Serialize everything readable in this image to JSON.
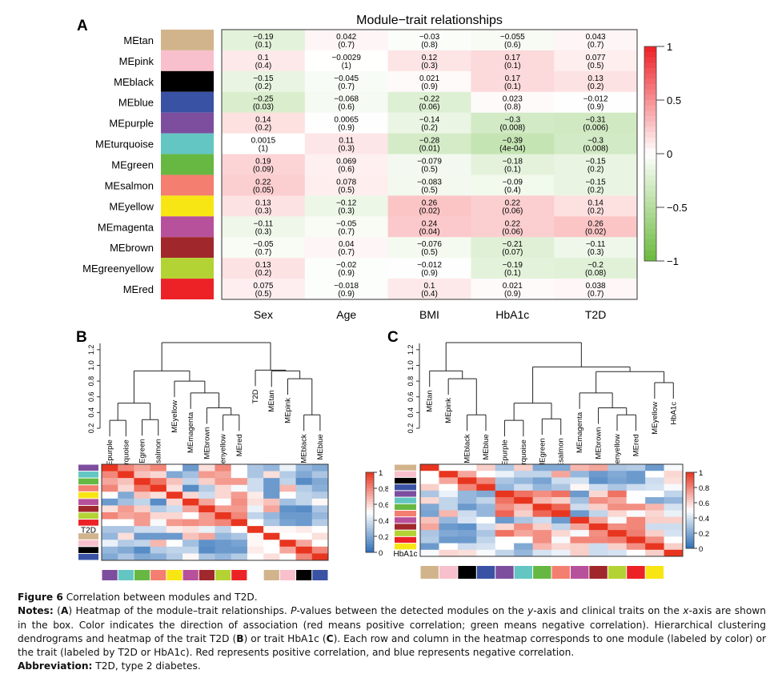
{
  "figure": {
    "caption_label": "Figure 6",
    "caption_title": " Correlation between modules and T2D.",
    "notes_label": "Notes:",
    "notes_segments": [
      {
        "t": " ("
      },
      {
        "t": "A",
        "b": true
      },
      {
        "t": ") Heatmap of the module–trait relationships. "
      },
      {
        "t": "P",
        "i": true
      },
      {
        "t": "-values between the detected modules on the "
      },
      {
        "t": "y",
        "i": true
      },
      {
        "t": "-axis and clinical traits on the "
      },
      {
        "t": "x",
        "i": true
      },
      {
        "t": "-axis are shown in the box. Color indicates the direction of association (red means positive correlation; green means negative correlation). Hierarchical clustering dendrograms and heatmap of the trait T2D ("
      },
      {
        "t": "B",
        "b": true
      },
      {
        "t": ") or trait HbA1c ("
      },
      {
        "t": "C",
        "b": true
      },
      {
        "t": "). Each row and column in the heatmap corresponds to one module (labeled by color) or the trait (labeled by T2D or HbA1c). Red represents positive correlation, and blue represents negative correlation."
      }
    ],
    "abbrev_label": "Abbreviation:",
    "abbrev_text": " T2D, type 2 diabetes."
  },
  "module_colors": {
    "MEtan": "#d2b48c",
    "MEpink": "#f8c0cc",
    "MEblack": "#000000",
    "MEblue": "#3a52a4",
    "MEpurple": "#7d4e9e",
    "MEturquoise": "#63c6c3",
    "MEgreen": "#67b843",
    "MEsalmon": "#f47e6f",
    "MEyellow": "#f7e614",
    "MEmagenta": "#b7519c",
    "MEbrown": "#a0282c",
    "MEgreenyellow": "#b3d334",
    "MEred": "#ec2227"
  },
  "chart_data": [
    {
      "type": "heatmap",
      "panel": "A",
      "title": "Module−trait relationships",
      "rows": [
        "MEtan",
        "MEpink",
        "MEblack",
        "MEblue",
        "MEpurple",
        "MEturquoise",
        "MEgreen",
        "MEsalmon",
        "MEyellow",
        "MEmagenta",
        "MEbrown",
        "MEgreenyellow",
        "MEred"
      ],
      "columns": [
        "Sex",
        "Age",
        "BMI",
        "HbA1c",
        "T2D"
      ],
      "values": [
        [
          -0.19,
          0.042,
          -0.03,
          -0.055,
          0.043
        ],
        [
          0.1,
          -0.0029,
          0.12,
          0.17,
          0.077
        ],
        [
          -0.15,
          -0.045,
          0.021,
          0.17,
          0.13
        ],
        [
          -0.25,
          -0.068,
          -0.22,
          0.023,
          -0.012
        ],
        [
          0.14,
          0.0065,
          -0.14,
          -0.3,
          -0.31
        ],
        [
          0.0015,
          0.11,
          -0.28,
          -0.39,
          -0.3
        ],
        [
          0.19,
          0.069,
          -0.079,
          -0.18,
          -0.15
        ],
        [
          0.22,
          0.078,
          -0.083,
          -0.09,
          -0.15
        ],
        [
          0.13,
          -0.12,
          0.26,
          0.22,
          0.14
        ],
        [
          -0.11,
          -0.05,
          0.24,
          0.22,
          0.26
        ],
        [
          -0.05,
          0.04,
          -0.076,
          -0.21,
          -0.11
        ],
        [
          0.13,
          -0.02,
          -0.012,
          -0.19,
          -0.2
        ],
        [
          0.075,
          -0.018,
          0.1,
          0.021,
          0.038
        ]
      ],
      "labels": [
        [
          [
            "-0.19",
            "(0.1)"
          ],
          [
            "0.042",
            "(0.7)"
          ],
          [
            "-0.03",
            "(0.8)"
          ],
          [
            "-0.055",
            "(0.6)"
          ],
          [
            "0.043",
            "(0.7)"
          ]
        ],
        [
          [
            "0.1",
            "(0.4)"
          ],
          [
            "-0.0029",
            "(1)"
          ],
          [
            "0.12",
            "(0.3)"
          ],
          [
            "0.17",
            "(0.1)"
          ],
          [
            "0.077",
            "(0.5)"
          ]
        ],
        [
          [
            "-0.15",
            "(0.2)"
          ],
          [
            "-0.045",
            "(0.7)"
          ],
          [
            "0.021",
            "(0.9)"
          ],
          [
            "0.17",
            "(0.1)"
          ],
          [
            "0.13",
            "(0.2)"
          ]
        ],
        [
          [
            "-0.25",
            "(0.03)"
          ],
          [
            "-0.068",
            "(0.6)"
          ],
          [
            "-0.22",
            "(0.06)"
          ],
          [
            "0.023",
            "(0.8)"
          ],
          [
            "-0.012",
            "(0.9)"
          ]
        ],
        [
          [
            "0.14",
            "(0.2)"
          ],
          [
            "0.0065",
            "(0.9)"
          ],
          [
            "-0.14",
            "(0.2)"
          ],
          [
            "-0.3",
            "(0.008)"
          ],
          [
            "-0.31",
            "(0.006)"
          ]
        ],
        [
          [
            "0.0015",
            "(1)"
          ],
          [
            "0.11",
            "(0.3)"
          ],
          [
            "-0.28",
            "(0.01)"
          ],
          [
            "-0.39",
            "(4e-04)"
          ],
          [
            "-0.3",
            "(0.008)"
          ]
        ],
        [
          [
            "0.19",
            "(0.09)"
          ],
          [
            "0.069",
            "(0.6)"
          ],
          [
            "-0.079",
            "(0.5)"
          ],
          [
            "-0.18",
            "(0.1)"
          ],
          [
            "-0.15",
            "(0.2)"
          ]
        ],
        [
          [
            "0.22",
            "(0.05)"
          ],
          [
            "0.078",
            "(0.5)"
          ],
          [
            "-0.083",
            "(0.5)"
          ],
          [
            "-0.09",
            "(0.4)"
          ],
          [
            "-0.15",
            "(0.2)"
          ]
        ],
        [
          [
            "0.13",
            "(0.3)"
          ],
          [
            "-0.12",
            "(0.3)"
          ],
          [
            "0.26",
            "(0.02)"
          ],
          [
            "0.22",
            "(0.06)"
          ],
          [
            "0.14",
            "(0.2)"
          ]
        ],
        [
          [
            "-0.11",
            "(0.3)"
          ],
          [
            "-0.05",
            "(0.7)"
          ],
          [
            "0.24",
            "(0.04)"
          ],
          [
            "0.22",
            "(0.06)"
          ],
          [
            "0.26",
            "(0.02)"
          ]
        ],
        [
          [
            "-0.05",
            "(0.7)"
          ],
          [
            "0.04",
            "(0.7)"
          ],
          [
            "-0.076",
            "(0.5)"
          ],
          [
            "-0.21",
            "(0.07)"
          ],
          [
            "-0.11",
            "(0.3)"
          ]
        ],
        [
          [
            "0.13",
            "(0.2)"
          ],
          [
            "-0.02",
            "(0.9)"
          ],
          [
            "-0.012",
            "(0.9)"
          ],
          [
            "-0.19",
            "(0.1)"
          ],
          [
            "-0.2",
            "(0.08)"
          ]
        ],
        [
          [
            "0.075",
            "(0.5)"
          ],
          [
            "-0.018",
            "(0.9)"
          ],
          [
            "0.1",
            "(0.4)"
          ],
          [
            "0.021",
            "(0.9)"
          ],
          [
            "0.038",
            "(0.7)"
          ]
        ]
      ],
      "colorscale": {
        "low": "#6ab93c",
        "mid": "#ffffff",
        "high": "#ee1f25",
        "range": [
          -1,
          1
        ]
      },
      "legend_ticks": [
        "1",
        "0.5",
        "0",
        "−0.5",
        "−1"
      ],
      "legend_position": "right"
    },
    {
      "type": "heatmap",
      "panel": "B",
      "dendrogram_axis_ticks": [
        "0.2",
        "0.4",
        "0.6",
        "0.8",
        "1.0",
        "1.2"
      ],
      "dendrogram_ylim": [
        0.2,
        1.3
      ],
      "dendrogram_leaves": [
        "MEpurple",
        "MEturquoise",
        "MEgreen",
        "MEsalmon",
        "MEyellow",
        "MEmagenta",
        "MEbrown",
        "MEgreenyellow",
        "MEred",
        "T2D",
        "MEtan",
        "MEpink",
        "MEblack",
        "MEblue"
      ],
      "dendrogram_merges": [
        [
          0,
          1,
          0.3
        ],
        [
          2,
          3,
          0.31
        ],
        [
          -1,
          -2,
          0.52
        ],
        [
          7,
          8,
          0.37
        ],
        [
          6,
          -4,
          0.46
        ],
        [
          5,
          -5,
          0.65
        ],
        [
          4,
          -6,
          0.8
        ],
        [
          -3,
          -7,
          0.93
        ],
        [
          12,
          13,
          0.37
        ],
        [
          11,
          -9,
          0.83
        ],
        [
          10,
          -10,
          0.93
        ],
        [
          9,
          -11,
          0.94
        ],
        [
          -8,
          -12,
          1.29
        ]
      ],
      "order": [
        "MEpurple",
        "MEturquoise",
        "MEgreen",
        "MEsalmon",
        "MEyellow",
        "MEmagenta",
        "MEbrown",
        "MEgreenyellow",
        "MEred",
        "T2D",
        "MEtan",
        "MEpink",
        "MEblack",
        "MEblue"
      ],
      "values": [
        [
          1.0,
          0.8,
          0.72,
          0.8,
          0.5,
          0.15,
          0.58,
          0.8,
          0.5,
          0.3,
          0.25,
          0.45,
          0.25,
          0.2
        ],
        [
          0.8,
          1.0,
          0.65,
          0.6,
          0.2,
          0.28,
          0.75,
          0.72,
          0.5,
          0.3,
          0.58,
          0.32,
          0.2,
          0.3
        ],
        [
          0.72,
          0.65,
          1.0,
          0.85,
          0.65,
          0.35,
          0.62,
          0.75,
          0.75,
          0.38,
          0.15,
          0.35,
          0.1,
          0.2
        ],
        [
          0.8,
          0.6,
          0.85,
          1.0,
          0.58,
          0.1,
          0.32,
          0.6,
          0.48,
          0.38,
          0.15,
          0.68,
          0.32,
          0.22
        ],
        [
          0.5,
          0.2,
          0.65,
          0.58,
          1.0,
          0.6,
          0.38,
          0.6,
          0.75,
          0.55,
          0.15,
          0.5,
          0.35,
          0.32
        ],
        [
          0.15,
          0.28,
          0.35,
          0.1,
          0.6,
          1.0,
          0.72,
          0.5,
          0.78,
          0.58,
          0.65,
          0.28,
          0.35,
          0.52
        ],
        [
          0.58,
          0.75,
          0.62,
          0.32,
          0.38,
          0.72,
          1.0,
          0.75,
          0.75,
          0.45,
          0.72,
          0.12,
          0.1,
          0.3
        ],
        [
          0.8,
          0.72,
          0.75,
          0.6,
          0.6,
          0.5,
          0.75,
          1.0,
          0.8,
          0.35,
          0.25,
          0.15,
          0.15,
          0.25
        ],
        [
          0.5,
          0.5,
          0.75,
          0.48,
          0.75,
          0.78,
          0.75,
          0.8,
          1.0,
          0.5,
          0.3,
          0.18,
          0.15,
          0.32
        ],
        [
          0.3,
          0.3,
          0.38,
          0.38,
          0.55,
          0.58,
          0.45,
          0.35,
          0.5,
          1.0,
          0.52,
          0.52,
          0.55,
          0.5
        ],
        [
          0.25,
          0.58,
          0.15,
          0.15,
          0.15,
          0.65,
          0.72,
          0.25,
          0.3,
          0.52,
          1.0,
          0.5,
          0.5,
          0.58
        ],
        [
          0.45,
          0.32,
          0.35,
          0.68,
          0.5,
          0.28,
          0.12,
          0.15,
          0.18,
          0.52,
          0.5,
          1.0,
          0.72,
          0.5
        ],
        [
          0.25,
          0.2,
          0.1,
          0.32,
          0.35,
          0.35,
          0.1,
          0.15,
          0.15,
          0.55,
          0.5,
          0.72,
          1.0,
          0.8
        ],
        [
          0.2,
          0.3,
          0.2,
          0.22,
          0.32,
          0.52,
          0.3,
          0.25,
          0.32,
          0.5,
          0.58,
          0.5,
          0.8,
          1.0
        ]
      ],
      "row_label_text": "T2D",
      "colorscale": {
        "low": "#2d6fb8",
        "mid": "#ffffff",
        "high": "#e8351f",
        "range": [
          0,
          1
        ]
      },
      "legend_ticks": [
        "1",
        "0.8",
        "0.6",
        "0.4",
        "0.2",
        "0"
      ],
      "legend_position": "right"
    },
    {
      "type": "heatmap",
      "panel": "C",
      "dendrogram_axis_ticks": [
        "0.2",
        "0.4",
        "0.6",
        "0.8",
        "1.0",
        "1.2"
      ],
      "dendrogram_ylim": [
        0.2,
        1.3
      ],
      "dendrogram_leaves": [
        "MEtan",
        "MEpink",
        "MEblack",
        "MEblue",
        "MEpurple",
        "MEturquoise",
        "MEgreen",
        "MEsalmon",
        "MEmagenta",
        "MEbrown",
        "MEgreenyellow",
        "MEred",
        "MEyellow",
        "HbA1c"
      ],
      "dendrogram_merges": [
        [
          2,
          3,
          0.37
        ],
        [
          1,
          -1,
          0.83
        ],
        [
          0,
          -2,
          0.93
        ],
        [
          4,
          5,
          0.3
        ],
        [
          6,
          7,
          0.32
        ],
        [
          -4,
          -5,
          0.52
        ],
        [
          10,
          11,
          0.37
        ],
        [
          9,
          -7,
          0.46
        ],
        [
          8,
          -8,
          0.65
        ],
        [
          12,
          13,
          0.78
        ],
        [
          -9,
          -10,
          0.92
        ],
        [
          -6,
          -11,
          0.98
        ],
        [
          -3,
          -12,
          1.29
        ]
      ],
      "row_order": [
        "MEtan",
        "MEpink",
        "MEblack",
        "MEblue",
        "MEpurple",
        "MEturquoise",
        "MEgreen",
        "MEsalmon",
        "MEmagenta",
        "MEbrown",
        "MEgreenyellow",
        "MEred",
        "MEyellow",
        "HbA1c"
      ],
      "column_order": [
        "MEtan",
        "MEpink",
        "MEblack",
        "MEblue",
        "MEpurple",
        "MEturquoise",
        "MEgreen",
        "MEsalmon",
        "MEmagenta",
        "MEbrown",
        "MEgreenyellow",
        "MEred",
        "MEyellow",
        "HbA1c"
      ],
      "values": [
        [
          1.0,
          0.5,
          0.5,
          0.62,
          0.3,
          0.62,
          0.2,
          0.2,
          0.68,
          0.72,
          0.3,
          0.32,
          0.15,
          0.48
        ],
        [
          0.5,
          1.0,
          0.72,
          0.5,
          0.45,
          0.35,
          0.35,
          0.72,
          0.25,
          0.15,
          0.2,
          0.15,
          0.5,
          0.6
        ],
        [
          0.5,
          0.72,
          1.0,
          0.8,
          0.3,
          0.25,
          0.18,
          0.38,
          0.4,
          0.12,
          0.18,
          0.15,
          0.38,
          0.58
        ],
        [
          0.62,
          0.5,
          0.8,
          1.0,
          0.25,
          0.38,
          0.25,
          0.3,
          0.52,
          0.38,
          0.3,
          0.38,
          0.4,
          0.48
        ],
        [
          0.3,
          0.45,
          0.25,
          0.2,
          1.0,
          0.85,
          0.78,
          0.85,
          0.15,
          0.6,
          0.85,
          0.5,
          0.5,
          0.35
        ],
        [
          0.6,
          0.35,
          0.25,
          0.35,
          0.85,
          1.0,
          0.68,
          0.62,
          0.28,
          0.78,
          0.72,
          0.5,
          0.2,
          0.25
        ],
        [
          0.2,
          0.35,
          0.15,
          0.25,
          0.78,
          0.68,
          1.0,
          0.88,
          0.38,
          0.62,
          0.78,
          0.78,
          0.68,
          0.4
        ],
        [
          0.18,
          0.68,
          0.38,
          0.25,
          0.88,
          0.62,
          0.88,
          1.0,
          0.15,
          0.35,
          0.6,
          0.48,
          0.6,
          0.45
        ],
        [
          0.65,
          0.25,
          0.4,
          0.5,
          0.15,
          0.3,
          0.38,
          0.15,
          1.0,
          0.72,
          0.48,
          0.8,
          0.62,
          0.62
        ],
        [
          0.72,
          0.15,
          0.12,
          0.38,
          0.6,
          0.78,
          0.62,
          0.35,
          0.72,
          1.0,
          0.78,
          0.8,
          0.38,
          0.38
        ],
        [
          0.3,
          0.2,
          0.18,
          0.3,
          0.85,
          0.72,
          0.78,
          0.6,
          0.48,
          0.78,
          1.0,
          0.82,
          0.62,
          0.4
        ],
        [
          0.32,
          0.15,
          0.15,
          0.35,
          0.5,
          0.5,
          0.78,
          0.48,
          0.8,
          0.8,
          0.82,
          1.0,
          0.78,
          0.5
        ],
        [
          0.15,
          0.5,
          0.38,
          0.4,
          0.5,
          0.2,
          0.68,
          0.6,
          0.62,
          0.38,
          0.62,
          0.78,
          1.0,
          0.62
        ],
        [
          0.48,
          0.6,
          0.58,
          0.48,
          0.35,
          0.25,
          0.4,
          0.45,
          0.62,
          0.38,
          0.4,
          0.5,
          0.62,
          1.0
        ]
      ],
      "row_label_text": "HbA1c",
      "colorscale": {
        "low": "#2d6fb8",
        "mid": "#ffffff",
        "high": "#e8351f",
        "range": [
          0,
          1
        ]
      },
      "legend_ticks": [
        "1",
        "0.8",
        "0.6",
        "0.4",
        "0.2",
        "0"
      ],
      "legend_position": "right"
    }
  ],
  "panels": {
    "a": "A",
    "b": "B",
    "c": "C"
  }
}
